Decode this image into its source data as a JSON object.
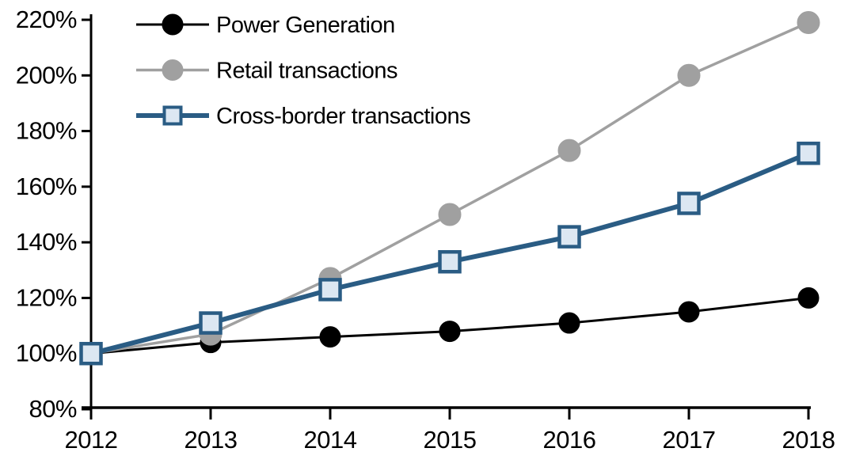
{
  "chart_data": {
    "type": "line",
    "title": "",
    "x": [
      "2012",
      "2013",
      "2014",
      "2015",
      "2016",
      "2017",
      "2018"
    ],
    "series": [
      {
        "name": "Power Generation",
        "values": [
          100,
          104,
          106,
          108,
          111,
          115,
          120
        ],
        "line_color": "#000000",
        "line_width": 3,
        "marker": "circle",
        "marker_fill": "#000000",
        "marker_stroke": "#000000",
        "marker_size": 13
      },
      {
        "name": "Retail transactions",
        "values": [
          100,
          107,
          127,
          150,
          173,
          200,
          219
        ],
        "line_color": "#A0A0A0",
        "line_width": 3.5,
        "marker": "circle",
        "marker_fill": "#A0A0A0",
        "marker_stroke": "#A0A0A0",
        "marker_size": 14
      },
      {
        "name": "Cross-border transactions",
        "values": [
          100,
          111,
          123,
          133,
          142,
          154,
          172
        ],
        "line_color": "#2A5C84",
        "line_width": 6,
        "marker": "square",
        "marker_fill": "#DCE7F2",
        "marker_stroke": "#2A5C84",
        "marker_size": 25
      }
    ],
    "ylim": [
      80,
      220
    ],
    "ytick_step": 20,
    "ytick_labels": [
      "80%",
      "100%",
      "120%",
      "140%",
      "160%",
      "180%",
      "200%",
      "220%"
    ],
    "ytick_format": "percent",
    "xlabel": "",
    "ylabel": "",
    "grid": false,
    "legend_position": "top-left",
    "axis_color": "#000000",
    "background_color": "#FFFFFF"
  }
}
